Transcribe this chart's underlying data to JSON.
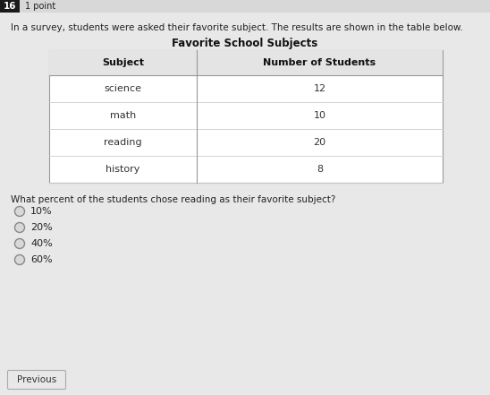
{
  "question_number": "16",
  "point_label": "1 point",
  "intro_text": "In a survey, students were asked their favorite subject. The results are shown in the table below.",
  "table_title": "Favorite School Subjects",
  "table_headers": [
    "Subject",
    "Number of Students"
  ],
  "table_rows": [
    [
      "science",
      "12"
    ],
    [
      "math",
      "10"
    ],
    [
      "reading",
      "20"
    ],
    [
      "history",
      "8"
    ]
  ],
  "question_text": "What percent of the students chose reading as their favorite subject?",
  "choices": [
    "10%",
    "20%",
    "40%",
    "60%"
  ],
  "button_label": "Previous",
  "bg_color": "#d8d8d8",
  "table_bg": "#ffffff",
  "header_bg": "#e0e0e0",
  "body_bg": "#e8e8e8",
  "number_bg": "#1a1a1a",
  "number_fg": "#ffffff",
  "text_color": "#222222",
  "table_border": "#999999",
  "table_line": "#cccccc"
}
